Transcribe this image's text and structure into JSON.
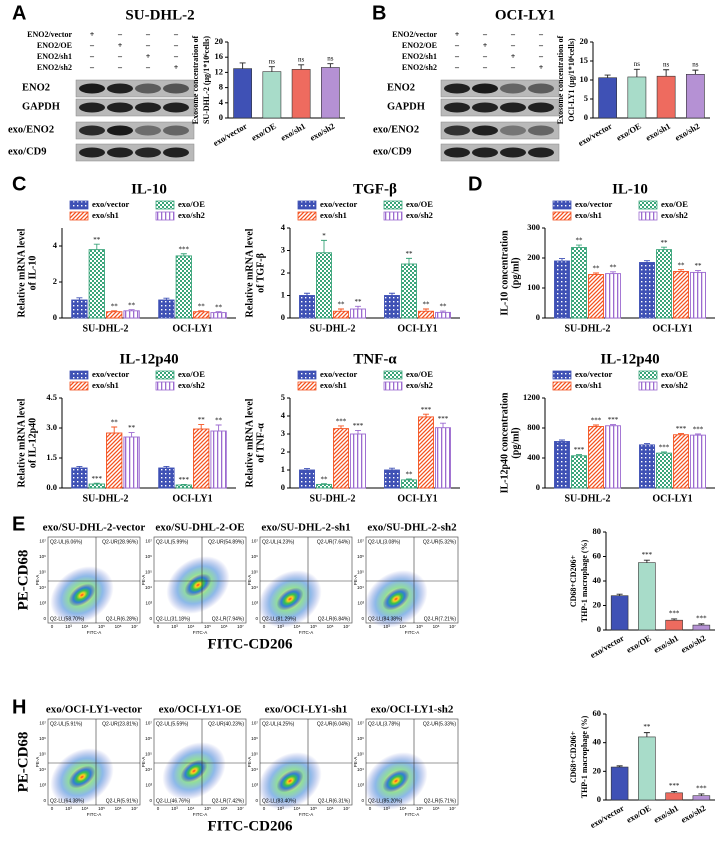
{
  "panel_labels": [
    "A",
    "B",
    "C",
    "D",
    "E",
    "H"
  ],
  "blots": [
    {
      "title": "SU-DHL-2",
      "conditions": [
        "ENO2/vector",
        "ENO2/OE",
        "ENO2/sh1",
        "ENO2/sh2"
      ],
      "signs": [
        [
          "+",
          "–",
          "–",
          "–"
        ],
        [
          "–",
          "+",
          "–",
          "–"
        ],
        [
          "–",
          "–",
          "+",
          "–"
        ],
        [
          "–",
          "–",
          "–",
          "+"
        ]
      ],
      "rows": [
        "ENO2",
        "GAPDH",
        "exo/ENO2",
        "exo/CD9"
      ]
    },
    {
      "title": "OCI-LY1",
      "conditions": [
        "ENO2/vector",
        "ENO2/OE",
        "ENO2/sh1",
        "ENO2/sh2"
      ],
      "signs": [
        [
          "+",
          "–",
          "–",
          "–"
        ],
        [
          "–",
          "+",
          "–",
          "–"
        ],
        [
          "–",
          "–",
          "+",
          "–"
        ],
        [
          "–",
          "–",
          "–",
          "+"
        ]
      ],
      "rows": [
        "ENO2",
        "GAPDH",
        "exo/ENO2",
        "exo/CD9"
      ]
    }
  ],
  "chart_data": [
    {
      "type": "bar",
      "ylabel": [
        "Exosome concentration of",
        "SU-DHL-2 (μg/1*10⁶cells)"
      ],
      "categories": [
        "exo/vector",
        "exo/OE",
        "exo/sh1",
        "exo/sh2"
      ],
      "values": [
        13.0,
        12.2,
        12.8,
        13.3
      ],
      "errors": [
        1.5,
        1.3,
        1.2,
        1.0
      ],
      "annotations": [
        null,
        "ns",
        "ns",
        "ns"
      ],
      "colors": [
        "#3f51b5",
        "#a8dcc9",
        "#ee6b5f",
        "#b591d4"
      ],
      "ylim": [
        0,
        20
      ],
      "yticks": [
        0,
        4,
        8,
        12,
        16,
        20
      ]
    },
    {
      "type": "bar",
      "ylabel": [
        "Exosome concentration of",
        "OCI-LY1 (μg/1*10⁶cells)"
      ],
      "categories": [
        "exo/vector",
        "exo/OE",
        "exo/sh1",
        "exo/sh2"
      ],
      "values": [
        10.6,
        10.8,
        11.0,
        11.5
      ],
      "errors": [
        0.7,
        2.0,
        1.7,
        1.1
      ],
      "annotations": [
        null,
        "ns",
        "ns",
        "ns"
      ],
      "colors": [
        "#3f51b5",
        "#a8dcc9",
        "#ee6b5f",
        "#b591d4"
      ],
      "ylim": [
        0,
        20
      ],
      "yticks": [
        0,
        5,
        10,
        15,
        20
      ]
    },
    {
      "type": "grouped_bar",
      "title": "IL-10",
      "ylabel": [
        "Relative mRNA level",
        "of IL-10"
      ],
      "categories": [
        "SU-DHL-2",
        "OCI-LY1"
      ],
      "ylim": [
        0,
        5
      ],
      "yticks": [
        0,
        2,
        4
      ],
      "series": [
        {
          "name": "exo/vector",
          "color": "#3f51b5",
          "hatch": "grid",
          "values": [
            1.0,
            1.0
          ],
          "errors": [
            0.12,
            0.1
          ],
          "annotations": [
            null,
            null
          ]
        },
        {
          "name": "exo/OE",
          "color": "#3aa57a",
          "hatch": "checker",
          "values": [
            3.8,
            3.45
          ],
          "errors": [
            0.3,
            0.12
          ],
          "annotations": [
            "**",
            "***"
          ]
        },
        {
          "name": "exo/sh1",
          "color": "#f4511e",
          "hatch": "diagonal",
          "values": [
            0.35,
            0.35
          ],
          "errors": [
            0.05,
            0.05
          ],
          "annotations": [
            "**",
            "**"
          ]
        },
        {
          "name": "exo/sh2",
          "color": "#9c6ad0",
          "hatch": "vertical",
          "values": [
            0.4,
            0.3
          ],
          "errors": [
            0.06,
            0.05
          ],
          "annotations": [
            "**",
            "**"
          ]
        }
      ]
    },
    {
      "type": "grouped_bar",
      "title": "TGF-β",
      "ylabel": [
        "Relative mRNA level",
        "of TGF-β"
      ],
      "categories": [
        "SU-DHL-2",
        "OCI-LY1"
      ],
      "ylim": [
        0,
        4
      ],
      "yticks": [
        0,
        1,
        2,
        3,
        4
      ],
      "series": [
        {
          "name": "exo/vector",
          "color": "#3f51b5",
          "hatch": "grid",
          "values": [
            1.0,
            1.0
          ],
          "errors": [
            0.1,
            0.1
          ],
          "annotations": [
            null,
            null
          ]
        },
        {
          "name": "exo/OE",
          "color": "#3aa57a",
          "hatch": "checker",
          "values": [
            2.9,
            2.4
          ],
          "errors": [
            0.55,
            0.25
          ],
          "annotations": [
            "*",
            "**"
          ]
        },
        {
          "name": "exo/sh1",
          "color": "#f4511e",
          "hatch": "diagonal",
          "values": [
            0.3,
            0.3
          ],
          "errors": [
            0.1,
            0.1
          ],
          "annotations": [
            "**",
            "**"
          ]
        },
        {
          "name": "exo/sh2",
          "color": "#9c6ad0",
          "hatch": "vertical",
          "values": [
            0.4,
            0.25
          ],
          "errors": [
            0.12,
            0.06
          ],
          "annotations": [
            "**",
            "**"
          ]
        }
      ]
    },
    {
      "type": "grouped_bar",
      "title": "IL-12p40",
      "ylabel": [
        "Relative mRNA level",
        "of IL-12p40"
      ],
      "categories": [
        "SU-DHL-2",
        "OCI-LY1"
      ],
      "ylim": [
        0,
        4.5
      ],
      "yticks": [
        {
          "value": 0,
          "label": "0.0"
        },
        1.5,
        {
          "value": 3,
          "label": "3.0"
        },
        4.5
      ],
      "series": [
        {
          "name": "exo/vector",
          "color": "#3f51b5",
          "hatch": "grid",
          "values": [
            1.0,
            1.0
          ],
          "errors": [
            0.08,
            0.08
          ],
          "annotations": [
            null,
            null
          ]
        },
        {
          "name": "exo/OE",
          "color": "#3aa57a",
          "hatch": "checker",
          "values": [
            0.2,
            0.15
          ],
          "errors": [
            0.04,
            0.03
          ],
          "annotations": [
            "***",
            "***"
          ]
        },
        {
          "name": "exo/sh1",
          "color": "#f4511e",
          "hatch": "diagonal",
          "values": [
            2.75,
            2.95
          ],
          "errors": [
            0.3,
            0.22
          ],
          "annotations": [
            "**",
            "**"
          ]
        },
        {
          "name": "exo/sh2",
          "color": "#9c6ad0",
          "hatch": "vertical",
          "values": [
            2.55,
            2.85
          ],
          "errors": [
            0.22,
            0.3
          ],
          "annotations": [
            "**",
            "**"
          ]
        }
      ]
    },
    {
      "type": "grouped_bar",
      "title": "TNF-α",
      "ylabel": [
        "Relative mRNA level",
        "of TNF-α"
      ],
      "categories": [
        "SU-DHL-2",
        "OCI-LY1"
      ],
      "ylim": [
        0,
        5
      ],
      "yticks": [
        0,
        1,
        2,
        3,
        4,
        5
      ],
      "series": [
        {
          "name": "exo/vector",
          "color": "#3f51b5",
          "hatch": "grid",
          "values": [
            1.0,
            1.0
          ],
          "errors": [
            0.08,
            0.1
          ],
          "annotations": [
            null,
            null
          ]
        },
        {
          "name": "exo/OE",
          "color": "#3aa57a",
          "hatch": "checker",
          "values": [
            0.2,
            0.45
          ],
          "errors": [
            0.04,
            0.05
          ],
          "annotations": [
            "**",
            "**"
          ]
        },
        {
          "name": "exo/sh1",
          "color": "#f4511e",
          "hatch": "diagonal",
          "values": [
            3.3,
            3.95
          ],
          "errors": [
            0.15,
            0.15
          ],
          "annotations": [
            "***",
            "***"
          ]
        },
        {
          "name": "exo/sh2",
          "color": "#9c6ad0",
          "hatch": "vertical",
          "values": [
            3.0,
            3.35
          ],
          "errors": [
            0.2,
            0.25
          ],
          "annotations": [
            "***",
            "***"
          ]
        }
      ]
    },
    {
      "type": "grouped_bar",
      "title": "IL-10",
      "ylabel": [
        "IL-10 concentration",
        "(pg/ml)"
      ],
      "categories": [
        "SU-DHL-2",
        "OCI-LY1"
      ],
      "ylim": [
        0,
        300
      ],
      "yticks": [
        0,
        100,
        200,
        300
      ],
      "series": [
        {
          "name": "exo/vector",
          "color": "#3f51b5",
          "hatch": "grid",
          "values": [
            190,
            185
          ],
          "errors": [
            8,
            6
          ],
          "annotations": [
            null,
            null
          ]
        },
        {
          "name": "exo/OE",
          "color": "#3aa57a",
          "hatch": "checker",
          "values": [
            235,
            228
          ],
          "errors": [
            8,
            8
          ],
          "annotations": [
            "**",
            "**"
          ]
        },
        {
          "name": "exo/sh1",
          "color": "#f4511e",
          "hatch": "diagonal",
          "values": [
            145,
            155
          ],
          "errors": [
            5,
            6
          ],
          "annotations": [
            "**",
            "**"
          ]
        },
        {
          "name": "exo/sh2",
          "color": "#9c6ad0",
          "hatch": "vertical",
          "values": [
            148,
            152
          ],
          "errors": [
            6,
            6
          ],
          "annotations": [
            "**",
            "**"
          ]
        }
      ]
    },
    {
      "type": "grouped_bar",
      "title": "IL-12p40",
      "ylabel": [
        "IL-12p40 concentration",
        "(pg/ml)"
      ],
      "categories": [
        "SU-DHL-2",
        "OCI-LY1"
      ],
      "ylim": [
        0,
        1200
      ],
      "yticks": [
        0,
        400,
        800,
        1200
      ],
      "series": [
        {
          "name": "exo/vector",
          "color": "#3f51b5",
          "hatch": "grid",
          "values": [
            620,
            575
          ],
          "errors": [
            20,
            18
          ],
          "annotations": [
            null,
            null
          ]
        },
        {
          "name": "exo/OE",
          "color": "#3aa57a",
          "hatch": "checker",
          "values": [
            430,
            465
          ],
          "errors": [
            15,
            15
          ],
          "annotations": [
            "***",
            "***"
          ]
        },
        {
          "name": "exo/sh1",
          "color": "#f4511e",
          "hatch": "diagonal",
          "values": [
            820,
            710
          ],
          "errors": [
            20,
            15
          ],
          "annotations": [
            "***",
            "***"
          ]
        },
        {
          "name": "exo/sh2",
          "color": "#9c6ad0",
          "hatch": "vertical",
          "values": [
            830,
            705
          ],
          "errors": [
            15,
            15
          ],
          "annotations": [
            "***",
            "***"
          ]
        }
      ]
    },
    {
      "type": "bar",
      "ylabel": [
        "CD68+CD206+",
        "THP-1 macrophage (%)"
      ],
      "categories": [
        "exo/vector",
        "exo/OE",
        "exo/sh1",
        "exo/sh2"
      ],
      "values": [
        28,
        55,
        8,
        4
      ],
      "errors": [
        1.2,
        2.0,
        1.0,
        1.0
      ],
      "annotations": [
        null,
        "***",
        "***",
        "***"
      ],
      "colors": [
        "#3f51b5",
        "#a8dcc9",
        "#ee6b5f",
        "#b591d4"
      ],
      "ylim": [
        0,
        80
      ],
      "yticks": [
        0,
        20,
        40,
        60,
        80
      ]
    },
    {
      "type": "bar",
      "ylabel": [
        "CD68+CD206+",
        "THP-1 macrophage (%)"
      ],
      "categories": [
        "exo/vector",
        "exo/OE",
        "exo/sh1",
        "exo/sh2"
      ],
      "values": [
        23,
        44,
        5,
        3
      ],
      "errors": [
        0.8,
        3.0,
        1.0,
        1.2
      ],
      "annotations": [
        null,
        "**",
        "***",
        "***"
      ],
      "colors": [
        "#3f51b5",
        "#a8dcc9",
        "#ee6b5f",
        "#b591d4"
      ],
      "ylim": [
        0,
        60
      ],
      "yticks": [
        0,
        20,
        40,
        60
      ]
    }
  ],
  "flow": [
    {
      "x_label": "FITC-CD206",
      "y_label": "PE-CD68",
      "x_axis": "FITC-A",
      "y_axis": "PE-A",
      "ticks": [
        "0",
        "10³",
        "10⁴",
        "10⁵",
        "10⁶",
        "10⁷"
      ],
      "plots": [
        {
          "title": "exo/SU-DHL-2-vector",
          "ul": "Q2-UL(6.06%)",
          "ur": "Q2-UR(28.96%)",
          "ll": "Q2-LL(58.70%)",
          "lr": "Q2-LR(6.28%)"
        },
        {
          "title": "exo/SU-DHL-2-OE",
          "ul": "Q2-UL(5.99%)",
          "ur": "Q2-UR(54.89%)",
          "ll": "Q2-LL(31.18%)",
          "lr": "Q2-LR(7.94%)"
        },
        {
          "title": "exo/SU-DHL-2-sh1",
          "ul": "Q2-UL(4.23%)",
          "ur": "Q2-UR(7.64%)",
          "ll": "Q2-LL(81.29%)",
          "lr": "Q2-LR(6.84%)"
        },
        {
          "title": "exo/SU-DHL-2-sh2",
          "ul": "Q2-UL(3.08%)",
          "ur": "Q2-UR(5.32%)",
          "ll": "Q2-LL(84.38%)",
          "lr": "Q2-LR(7.21%)"
        }
      ]
    },
    {
      "x_label": "FITC-CD206",
      "y_label": "PE-CD68",
      "x_axis": "FITC-A",
      "y_axis": "PE-A",
      "ticks": [
        "0",
        "10³",
        "10⁴",
        "10⁵",
        "10⁶",
        "10⁷"
      ],
      "plots": [
        {
          "title": "exo/OCI-LY1-vector",
          "ul": "Q2-UL(5.91%)",
          "ur": "Q2-UR(23.81%)",
          "ll": "Q2-LL(64.38%)",
          "lr": "Q2-LR(5.91%)"
        },
        {
          "title": "exo/OCI-LY1-OE",
          "ul": "Q2-UL(5.59%)",
          "ur": "Q2-UR(40.23%)",
          "ll": "Q2-LL(46.76%)",
          "lr": "Q2-LR(7.42%)"
        },
        {
          "title": "exo/OCI-LY1-sh1",
          "ul": "Q2-UL(4.25%)",
          "ur": "Q2-UR(6.04%)",
          "ll": "Q2-LL(83.40%)",
          "lr": "Q2-LR(6.31%)"
        },
        {
          "title": "exo/OCI-LY1-sh2",
          "ul": "Q2-UL(3.78%)",
          "ur": "Q2-UR(5.33%)",
          "ll": "Q2-LL(85.20%)",
          "lr": "Q2-LR(5.71%)"
        }
      ]
    }
  ]
}
